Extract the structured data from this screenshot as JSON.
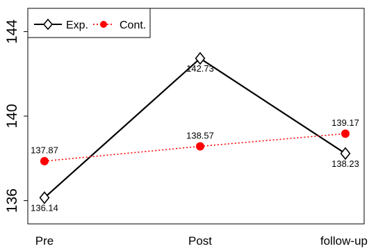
{
  "chart_data": {
    "type": "line",
    "categories": [
      "Pre",
      "Post",
      "follow-up"
    ],
    "series": [
      {
        "name": "Exp.",
        "values": [
          136.14,
          142.73,
          138.23
        ],
        "labels": [
          "136.14",
          "142.73",
          "138.23"
        ],
        "color": "#000000",
        "line_style": "solid",
        "marker": "open-diamond"
      },
      {
        "name": "Cont.",
        "values": [
          137.87,
          138.57,
          139.17
        ],
        "labels": [
          "137.87",
          "138.57",
          "139.17"
        ],
        "color": "#ff0000",
        "line_style": "dotted",
        "marker": "filled-circle"
      }
    ],
    "y_ticks": [
      136,
      140,
      144
    ],
    "y_tick_labels": [
      "136",
      "140",
      "144"
    ],
    "ylim": [
      134.9,
      145.1
    ],
    "grid": false,
    "legend_position": "top-left"
  }
}
